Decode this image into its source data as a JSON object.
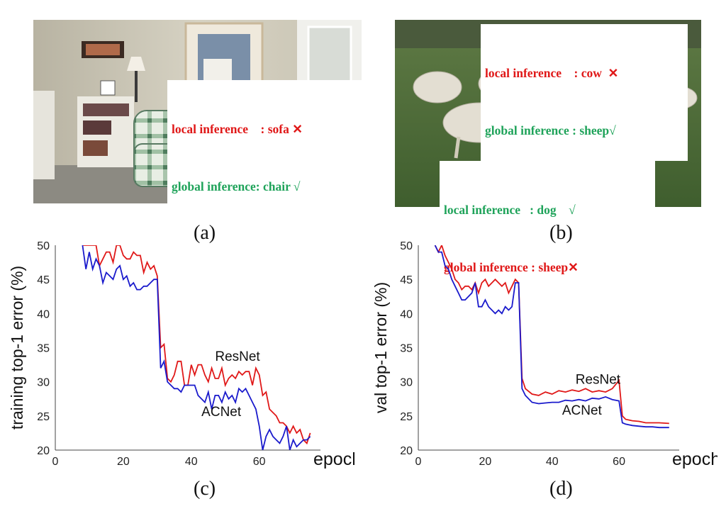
{
  "panel_a": {
    "caption": "(a)",
    "local_line": "local inference    : sofa ✕",
    "global_line": "global inference: chair √"
  },
  "panel_b": {
    "caption": "(b)",
    "local_top": "local inference    : cow  ✕",
    "global_top": "global inference : sheep√",
    "local_bottom": "local inference   : dog    √",
    "global_bottom": "global inference : sheep✕"
  },
  "panel_c": {
    "caption": "(c)"
  },
  "panel_d": {
    "caption": "(d)"
  },
  "colors": {
    "resnet": "#e01818",
    "acnet": "#1a1acc",
    "local_red": "#e01818",
    "global_green": "#1fa35a"
  },
  "chart_data": [
    {
      "type": "line",
      "ylabel": "training top-1 error (%)",
      "xlabel": "epoch",
      "xlim": [
        0,
        78
      ],
      "ylim": [
        20,
        50
      ],
      "xticks": [
        0,
        20,
        40,
        60
      ],
      "yticks": [
        20,
        25,
        30,
        35,
        40,
        45,
        50
      ],
      "series": [
        {
          "name": "ResNet",
          "x": [
            8,
            9,
            10,
            11,
            12,
            13,
            14,
            15,
            16,
            17,
            18,
            19,
            20,
            21,
            22,
            23,
            24,
            25,
            26,
            27,
            28,
            29,
            30,
            31,
            32,
            33,
            34,
            35,
            36,
            37,
            38,
            39,
            40,
            41,
            42,
            43,
            44,
            45,
            46,
            47,
            48,
            49,
            50,
            51,
            52,
            53,
            54,
            55,
            56,
            57,
            58,
            59,
            60,
            61,
            62,
            63,
            64,
            65,
            66,
            67,
            68,
            69,
            70,
            71,
            72,
            73,
            74,
            75
          ],
          "y": [
            50,
            50,
            50,
            50,
            50,
            47,
            48,
            49,
            49,
            47.5,
            50,
            50,
            48.5,
            48,
            48,
            49,
            48.5,
            48.5,
            46,
            47.5,
            46.5,
            47,
            45.5,
            35,
            35.5,
            30.5,
            30,
            31,
            33,
            33,
            29.5,
            29.5,
            32.5,
            31,
            32.5,
            32.5,
            31,
            30,
            32,
            30.5,
            30.5,
            32,
            29.5,
            30.5,
            31,
            30.5,
            31.5,
            31,
            31.5,
            31.5,
            29.5,
            32,
            31,
            28,
            28.5,
            26,
            25.5,
            25,
            24,
            24,
            23.5,
            22.5,
            23.5,
            22.5,
            23,
            21.5,
            21,
            22.5
          ]
        },
        {
          "name": "ACNet",
          "x": [
            8,
            9,
            10,
            11,
            12,
            13,
            14,
            15,
            16,
            17,
            18,
            19,
            20,
            21,
            22,
            23,
            24,
            25,
            26,
            27,
            28,
            29,
            30,
            31,
            32,
            33,
            34,
            35,
            36,
            37,
            38,
            39,
            40,
            41,
            42,
            43,
            44,
            45,
            46,
            47,
            48,
            49,
            50,
            51,
            52,
            53,
            54,
            55,
            56,
            57,
            58,
            59,
            60,
            61,
            62,
            63,
            64,
            65,
            66,
            67,
            68,
            69,
            70,
            71,
            72,
            73,
            74,
            75
          ],
          "y": [
            50,
            46.5,
            49,
            46.5,
            48,
            47,
            44.5,
            46,
            45.5,
            45,
            46.5,
            47,
            45,
            45.5,
            44,
            44.5,
            43.5,
            43.5,
            44,
            44,
            44.5,
            45,
            45,
            32,
            33,
            30,
            29.5,
            29,
            29,
            28.5,
            29.5,
            29.5,
            29.5,
            29.5,
            28,
            27.5,
            27,
            28.5,
            26,
            28,
            28,
            27,
            28.5,
            27.5,
            28,
            27,
            29,
            28.5,
            29,
            28,
            27,
            26,
            23.5,
            20,
            22,
            23,
            22,
            21.5,
            21,
            22,
            23.5,
            20,
            21.5,
            20.5,
            21,
            21.5,
            21.5,
            22
          ]
        }
      ],
      "annotations": [
        {
          "text": "ResNet",
          "x": 47,
          "y": 33.1
        },
        {
          "text": "ACNet",
          "x": 43,
          "y": 25
        }
      ]
    },
    {
      "type": "line",
      "ylabel": "val top-1 error (%)",
      "xlabel": "epoch",
      "xlim": [
        0,
        78
      ],
      "ylim": [
        20,
        50
      ],
      "xticks": [
        0,
        20,
        40,
        60
      ],
      "yticks": [
        20,
        25,
        30,
        35,
        40,
        45,
        50
      ],
      "series": [
        {
          "name": "ResNet",
          "x": [
            5,
            6,
            7,
            8,
            9,
            10,
            11,
            12,
            13,
            14,
            15,
            16,
            17,
            18,
            19,
            20,
            21,
            22,
            23,
            24,
            25,
            26,
            27,
            28,
            29,
            30,
            31,
            32,
            34,
            36,
            38,
            40,
            42,
            44,
            46,
            48,
            50,
            52,
            54,
            56,
            58,
            60,
            61,
            62,
            64,
            66,
            68,
            70,
            72,
            75
          ],
          "y": [
            50,
            49,
            50,
            48.5,
            47.5,
            46.5,
            45,
            44.5,
            43.5,
            44,
            44,
            43.5,
            44.5,
            43,
            44.5,
            45,
            44,
            44.5,
            45,
            44.5,
            44,
            44.5,
            43,
            44,
            45,
            44.5,
            30.5,
            29,
            28.2,
            28,
            28.5,
            28.2,
            28.7,
            28.5,
            28.8,
            28.6,
            29,
            28.5,
            28.7,
            28.5,
            29,
            30.2,
            25,
            24.5,
            24.3,
            24.2,
            24,
            24,
            24,
            23.9
          ]
        },
        {
          "name": "ACNet",
          "x": [
            5,
            6,
            7,
            8,
            9,
            10,
            11,
            12,
            13,
            14,
            15,
            16,
            17,
            18,
            19,
            20,
            21,
            22,
            23,
            24,
            25,
            26,
            27,
            28,
            29,
            30,
            31,
            32,
            34,
            36,
            38,
            40,
            42,
            44,
            46,
            48,
            50,
            52,
            54,
            56,
            58,
            60,
            61,
            62,
            64,
            66,
            68,
            70,
            72,
            75
          ],
          "y": [
            50,
            49,
            49,
            47,
            46.5,
            45,
            44,
            43,
            42,
            42,
            42.5,
            43,
            44.5,
            41,
            41,
            42,
            41,
            40.5,
            40,
            40.5,
            40,
            41,
            40.5,
            41,
            44.5,
            44.5,
            29,
            28,
            27,
            26.8,
            26.9,
            27,
            27,
            27.3,
            27.2,
            27.4,
            27.2,
            27.6,
            27.5,
            27.8,
            27.4,
            27.2,
            24,
            23.8,
            23.6,
            23.5,
            23.4,
            23.4,
            23.3,
            23.3
          ]
        }
      ],
      "annotations": [
        {
          "text": "ResNet",
          "x": 47,
          "y": 29.7
        },
        {
          "text": "ACNet",
          "x": 43,
          "y": 25.2
        }
      ]
    }
  ]
}
